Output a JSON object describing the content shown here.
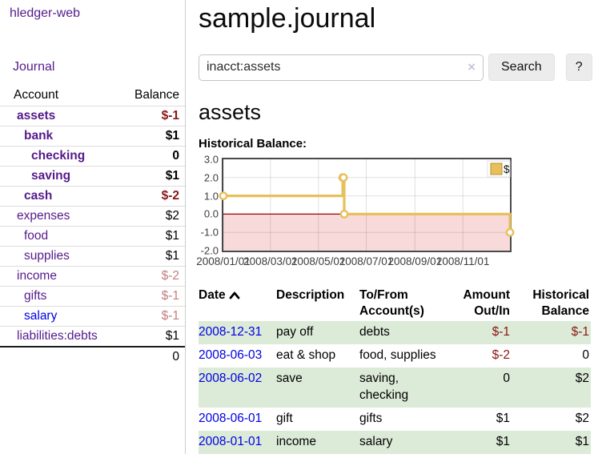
{
  "app": {
    "title": "hledger-web",
    "nav_journal": "Journal"
  },
  "sidebar": {
    "headers": {
      "account": "Account",
      "balance": "Balance"
    },
    "accounts": [
      {
        "name": "assets",
        "depth": 1,
        "balance": "$-1",
        "bold": true
      },
      {
        "name": "bank",
        "depth": 2,
        "balance": "$1",
        "bold": true
      },
      {
        "name": "checking",
        "depth": 3,
        "balance": "0",
        "bold": true
      },
      {
        "name": "saving",
        "depth": 3,
        "balance": "$1",
        "bold": true
      },
      {
        "name": "cash",
        "depth": 2,
        "balance": "$-2",
        "bold": true
      },
      {
        "name": "expenses",
        "depth": 1,
        "balance": "$2",
        "bold": false
      },
      {
        "name": "food",
        "depth": 2,
        "balance": "$1",
        "bold": false
      },
      {
        "name": "supplies",
        "depth": 2,
        "balance": "$1",
        "bold": false
      },
      {
        "name": "income",
        "depth": 1,
        "balance": "$-2",
        "bold": false
      },
      {
        "name": "gifts",
        "depth": 2,
        "balance": "$-1",
        "bold": false
      },
      {
        "name": "salary",
        "depth": 2,
        "balance": "$-1",
        "bold": false,
        "link_color": "blue"
      },
      {
        "name": "liabilities:debts",
        "depth": 1,
        "balance": "$1",
        "bold": false
      }
    ],
    "total": "0"
  },
  "header": {
    "title": "sample.journal"
  },
  "search": {
    "value": "inacct:assets",
    "clear_icon": "×",
    "button_label": "Search",
    "help_label": "?"
  },
  "register": {
    "heading": "assets",
    "chart_label": "Historical Balance:",
    "table": {
      "columns": [
        {
          "label": "Date",
          "sortable": true,
          "align": "left"
        },
        {
          "label": "Description",
          "align": "left"
        },
        {
          "label": "To/From Account(s)",
          "align": "left"
        },
        {
          "label": "Amount Out/In",
          "align": "right"
        },
        {
          "label": "Historical Balance",
          "align": "right"
        }
      ],
      "rows": [
        {
          "date": "2008-12-31",
          "description": "pay off",
          "accounts": [
            "debts"
          ],
          "amount": "$-1",
          "balance": "$-1"
        },
        {
          "date": "2008-06-03",
          "description": "eat & shop",
          "accounts": [
            "food, supplies"
          ],
          "amount": "$-2",
          "balance": "0"
        },
        {
          "date": "2008-06-02",
          "description": "save",
          "accounts": [
            "saving,",
            "checking"
          ],
          "amount": "0",
          "balance": "$2"
        },
        {
          "date": "2008-06-01",
          "description": "gift",
          "accounts": [
            "gifts"
          ],
          "amount": "$1",
          "balance": "$2"
        },
        {
          "date": "2008-01-01",
          "description": "income",
          "accounts": [
            "salary"
          ],
          "amount": "$1",
          "balance": "$1"
        }
      ]
    }
  },
  "chart_data": {
    "type": "line",
    "step": true,
    "title": "Historical Balance:",
    "legend": "$",
    "legend_position": "top-right",
    "grid": true,
    "x_range": [
      "2008-01-01",
      "2008-12-31"
    ],
    "ylim": [
      -2,
      3
    ],
    "y_ticks": [
      "3.0",
      "2.0",
      "1.0",
      "0.0",
      "-1.0",
      "-2.0"
    ],
    "x_ticks": [
      "2008/01/01",
      "2008/03/01",
      "2008/05/01",
      "2008/07/01",
      "2008/09/01",
      "2008/11/01"
    ],
    "series": [
      {
        "name": "$",
        "color": "#e7c05c",
        "points": [
          [
            "2008-01-01",
            1
          ],
          [
            "2008-06-01",
            2
          ],
          [
            "2008-06-02",
            2
          ],
          [
            "2008-06-03",
            0
          ],
          [
            "2008-12-31",
            -1
          ]
        ]
      }
    ],
    "negative_fill": "#f9dada",
    "zero_line_color": "#990000"
  },
  "colors": {
    "accent_purple": "#551a8b",
    "link_blue": "#0000e0",
    "negative_strong": "#8b1616",
    "negative_dim": "#c47e7e",
    "row_green": "#dcead8",
    "line_gold": "#e7c05c"
  }
}
